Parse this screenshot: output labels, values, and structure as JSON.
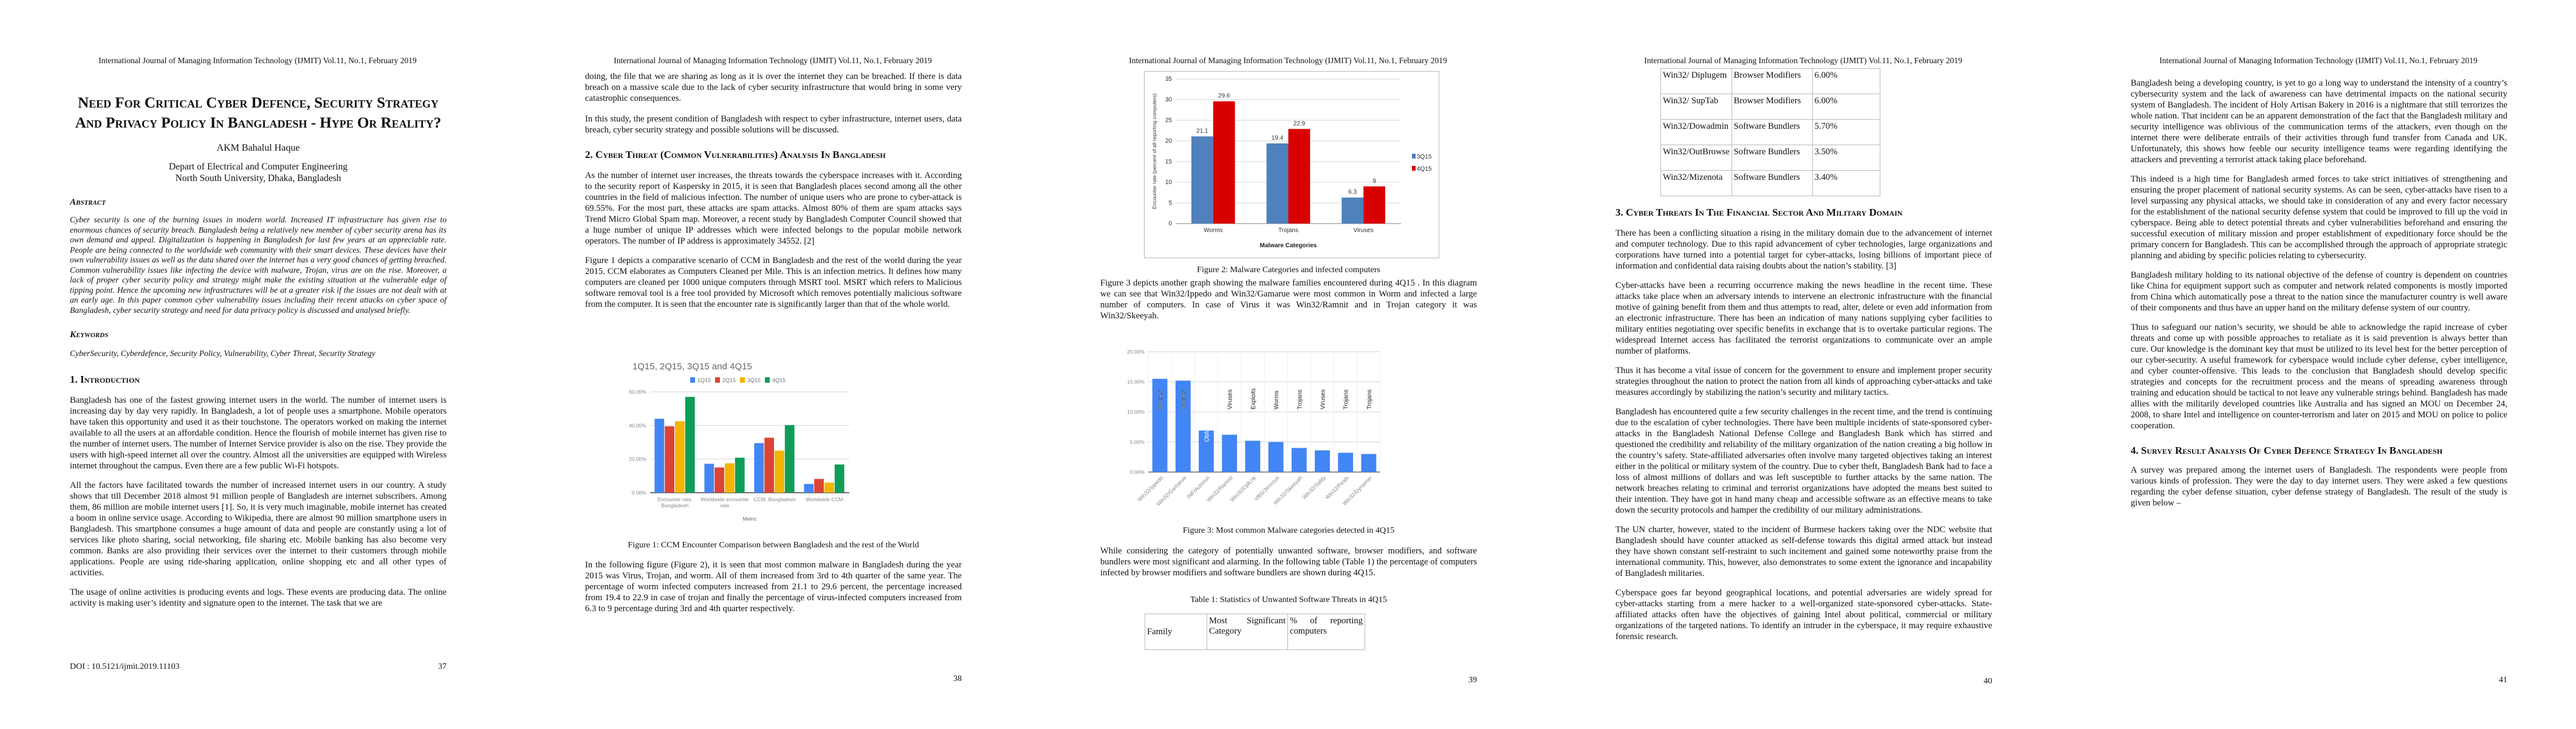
{
  "running_header": "International Journal of Managing Information Technology (IJMIT) Vol.11, No.1, February 2019",
  "page1": {
    "title": "Need For Critical Cyber Defence, Security Strategy And Privacy Policy In Bangladesh - Hype Or Reality?",
    "author": "AKM Bahalul Haque",
    "affiliation_1": "Depart of Electrical and Computer Engineering",
    "affiliation_2": "North South University, Dhaka, Bangladesh",
    "abstract_heading": "Abstract",
    "abstract": "Cyber security is one of the burning issues in modern world. Increased IT infrastructure has given rise to enormous chances of security breach. Bangladesh being a relatively new member of cyber security arena has its own demand and appeal. Digitalization is happening in Bangladesh for last few years at an appreciable rate. People are being connected to the worldwide web community with their smart devices. These devices have their own vulnerability issues as well as the data shared over the internet has a very good chances of getting breached. Common vulnerability issues like infecting the device with malware, Trojan, virus are on the rise. Moreover, a lack of proper cyber security policy and strategy might make the existing situation at the vulnerable edge of tipping point. Hence the upcoming new infrastructures will be at a greater risk if the issues are not dealt with at an early age. In this paper common cyber vulnerability issues including their recent attacks on cyber space of Bangladesh, cyber security strategy and need for data privacy policy is discussed and analysed briefly.",
    "keywords_heading": "Keywords",
    "keywords": "CyberSecurity, Cyberdefence, Security Policy, Vulnerability, Cyber Threat, Security Strategy",
    "intro_heading": "1. Introduction",
    "paragraphs": [
      "Bangladesh has one of the fastest growing internet users in the world. The number of internet users is increasing day by day very rapidly. In Bangladesh, a lot of people uses a smartphone. Mobile operators have taken this opportunity and used it as their touchstone. The operators worked on making the internet available to all the users at an affordable condition. Hence the flourish of mobile internet has given rise to the number of internet users. The number of Internet Service provider is also on the rise. They provide the users with high-speed internet all over the country. Almost all the universities are equipped with Wireless internet throughout the campus. Even there are a few public Wi-Fi hotspots.",
      "All the factors have facilitated towards the number of increased internet users in our country. A study shows that till December 2018 almost 91 million people of Bangladesh are internet subscribers. Among them, 86 million are mobile internet users [1]. So, it is very much imaginable, mobile internet has created a boom in online service usage. According to Wikipedia, there are almost 90 million smartphone users in Bangladesh. This smartphone consumes a huge amount of data and people are constantly using a lot of services like photo sharing, social networking, file sharing etc. Mobile banking has also become very common. Banks are also providing their services over the internet to their customers through mobile applications. People are using ride-sharing application, online shopping etc and all other types of activities.",
      "The usage of online activities is producing events and logs. These events are producing data. The online activity is making user’s identity and signature open to the internet. The task that we are"
    ],
    "doi": "DOI : 10.5121/ijmit.2019.11103",
    "page_number": "37"
  },
  "page2": {
    "paragraphs_top": [
      "doing, the file that we are sharing as long as it is over the internet they can be breached. If there is data breach on a massive scale due to the lack of cyber security infrastructure that would bring in some very catastrophic consequences.",
      "In this study, the present condition of Bangladesh with respect to cyber infrastructure, internet users, data breach, cyber security strategy and possible solutions will be discussed."
    ],
    "section2_heading": "2. Cyber Threat (Common Vulnerabilities) Analysis In Bangladesh",
    "paragraphs_mid": [
      "As the number of internet user increases, the threats towards the cyberspace increases with it. According to the security report of Kaspersky in 2015, it is seen that Bangladesh places second among all the other countries in the field of malicious infection. The number of unique users who are prone to cyber-attack is 69.55%. For the most part, these attacks are spam attacks. Almost 80% of them are spam attacks says Trend Micro Global Spam map. Moreover, a recent study by Bangladesh Computer Council showed that a huge number of unique IP addresses which were infected belongs to the popular mobile network operators. The number of IP address is approximately 34552. [2]",
      "Figure 1 depicts a comparative scenario of CCM in Bangladesh and the rest of the world during the year 2015. CCM elaborates as Computers Cleaned per Mile. This is an infection metrics. It defines how many computers are cleaned per 1000 unique computers through MSRT tool. MSRT which refers to Malicious software removal tool is a free tool provided by Microsoft which removes potentially malicious software from the computer. It is seen that the encounter rate is significantly larger than that of the whole world."
    ],
    "figure1_caption": "Figure 1: CCM Encounter Comparison between Bangladesh and the rest of the World",
    "paragraph_bottom": "In the following figure (Figure 2), it is seen that most common malware in Bangladesh during the year 2015 was Virus, Trojan, and worm.  All of them increased from 3rd to 4th quarter of the same year. The percentage of worm infected computers increased from 21.1 to 29.6 percent, the percentage increased from 19.4 to 22.9 in case of trojan and finally the percentage of virus-infected computers increased from 6.3 to 9 percentage during 3rd and 4th quarter respectively.",
    "page_number": "38"
  },
  "page3": {
    "figure2_caption": "Figure 2: Malware Categories and infected computers",
    "paragraph_1": "Figure 3 depicts another graph showing the malware families encountered during 4Q15 . In this diagram we can see that Win32/Ippedo and  Win32/Gamarue were most common in Worm and infected a large number of computers. In case of Virus it was Win32/Ramnit and in Trojan category it was Win32/Skeeyah.",
    "figure3_caption": "Figure 3: Most common Malware categories detected in 4Q15",
    "paragraph_2": "While considering the category of potentially unwanted software, browser modifiers, and software bundlers were most significant and alarming. In the following table (Table 1) the percentage of computers infected by browser modifiers and software bundlers are shown during 4Q15.",
    "table_caption": "Table 1: Statistics of Unwanted Software Threats in 4Q15",
    "table_headers": [
      "Family",
      "Most Significant Category",
      "% of reporting computers"
    ],
    "page_number": "39"
  },
  "page4": {
    "table_rows": [
      [
        "Win32/ Diplugem",
        "Browser Modifiers",
        "6.00%"
      ],
      [
        "Win32/ SupTab",
        "Browser Modifiers",
        "6.00%"
      ],
      [
        "Win32/Dowadmin",
        "Software Bundlers",
        "5.70%"
      ],
      [
        "Win32/OutBrowse",
        "Software Bundlers",
        "3.50%"
      ],
      [
        "Win32/Mizenota",
        "Software Bundlers",
        "3.40%"
      ]
    ],
    "section3_heading": "3. Cyber Threats In The Financial Sector And Military Domain",
    "paragraphs": [
      "There has been a conflicting situation a rising in the military domain due to the advancement of internet and computer technology. Due to this rapid advancement of cyber technologies, large organizations and corporations have turned into a potential target for cyber-attacks, losing billions of important piece of information and confidential data raising doubts about the nation’s stability. [3]",
      "Cyber-attacks have been a recurring occurrence making the news headline in the recent time. These attacks take place when an adversary intends to intervene an electronic infrastructure with the financial motive of gaining benefit from them and thus attempts to read, alter, delete or even add information from an electronic infrastructure. There has been an indication of many nations supplying cyber facilities to military entities negotiating over specific benefits in exchange that is to overtake particular regions. The widespread Internet access has facilitated the terrorist organizations to communicate over an ample number of platforms.",
      "Thus it has become a vital issue of concern for the government to ensure and implement proper security strategies throughout the nation to protect the nation from all kinds of approaching cyber-attacks and take measures accordingly by stabilizing the nation’s security and military tactics.",
      "Bangladesh has encountered quite a few security challenges in the recent time, and the trend is continuing due to the escalation of cyber technologies. There have been multiple incidents of state-sponsored cyber-attacks in the Bangladesh National Defense College and Bangladesh Bank which has stirred and questioned the credibility and reliability of the military organization of the nation creating a big hollow in the country’s safety. State-affiliated adversaries often involve many targeted objectives taking an interest either in the political or military system of the country. Due to cyber theft, Bangladesh Bank had to face a loss of almost millions of dollars and was left susceptible to further attacks by the same nation.  The network breaches relating to criminal and terrorist organizations have adopted the means best suited to their intention. They have got in hand many cheap and accessible software as an effective means to take down the security protocols and hamper the credibility of our military administrations.",
      "The UN charter, however, stated to the incident of Burmese hackers taking over the NDC website that Bangladesh should have counter attacked as self-defense towards this digital armed attack but instead they have shown constant self-restraint to such incitement and gained some noteworthy praise from the international community. This, however, also demonstrates to some extent the ignorance and incapability of Bangladesh militaries.",
      "Cyberspace goes far beyond geographical locations, and potential adversaries are widely spread for cyber-attacks starting from a mere hacker to a well-organized state-sponsored cyber-attacks. State-affiliated attacks often have the objectives of gaining Intel about political, commercial or military organizations of the targeted nations. To identify an intruder in the cyberspace, it may require exhaustive forensic research."
    ],
    "page_number": "40"
  },
  "page5": {
    "paragraphs": [
      "Bangladesh being a developing country, is yet to go a long way to understand the intensity of a country’s cybersecurity system and the lack of awareness can have detrimental impacts on the national security system of Bangladesh. The incident of Holy Artisan Bakery in 2016 is a nightmare that still terrorizes the whole nation.  That incident can be an apparent demonstration of the fact that the Bangladesh military and security intelligence was oblivious of the communication terms of the attackers, even though on the internet there were deliberate entrails of their activities through fund transfer from Canada and UK. Unfortunately, this shows how feeble our security intelligence teams were regarding identifying the attackers and preventing a terrorist attack taking place beforehand.",
      "This indeed is a high time for Bangladesh armed forces to take strict initiatives of strengthening and ensuring the proper placement of national security systems. As can be seen, cyber-attacks have risen to a level surpassing any physical attacks, we should take in consideration of any and every factor necessary for the establishment of the national security defense system that could be improved to fill up the void in cyberspace. Being able to detect potential threats and cyber vulnerabilities beforehand and ensuring the successful execution of military mission and proper establishment of expeditionary force should be the primary concern for Bangladesh.  This can be accomplished through the approach of appropriate strategic planning and abiding by specific policies relating to cybersecurity.",
      "Bangladesh military holding to its national objective of the defense of country is dependent on countries like China for equipment support such as computer and network related components is mostly imported from China which automatically pose a threat to the nation since the manufacturer country is well aware of their components and thus have an upper hand on the military defense system of our country.",
      "Thus to safeguard our nation’s security, we should be able to acknowledge the rapid increase of cyber threats and come up with possible approaches to retaliate as it is said prevention is always better than cure. Our knowledge is the dominant key that must be utilized to its level best for the better perception of our cyber-security. A useful framework for cyberspace would include cyber defense, cyber intelligence, and cyber counter-offensive.  This leads to the conclusion that Bangladesh should develop specific strategies and concepts for the recruitment process and the means of spreading awareness through training and education should be tactical to not leave any vulnerable strings behind. Bangladesh has made allies with the militarily developed countries like Australia and has signed an MOU on December 24, 2008, to share Intel and intelligence on counter-terrorism and later on 2015 and MOU on police to police cooperation."
    ],
    "section4_heading": "4. Survey Result Analysis Of Cyber Defence Strategy In Bangladesh",
    "paragraph_last": "A survey was prepared among the internet users of Bangladesh. The respondents were people from various kinds of profession. They were the day to day internet users. They were asked a few questions regarding the cyber defense situation, cyber defense strategy of Bangladesh. The result of the study is given below –",
    "page_number": "41"
  },
  "chart_data": [
    {
      "id": "figure1",
      "type": "bar",
      "title": "1Q15, 2Q15, 3Q15 and 4Q15",
      "xlabel": "Metric",
      "ylabel": "",
      "categories": [
        "Encounter rate, Bangladesh",
        "Worldwide encounter rate",
        "CCM, Bangladesh",
        "Worldwide CCM"
      ],
      "series": [
        {
          "name": "1Q15",
          "color": "#4285f4",
          "values": [
            44.0,
            17.2,
            29.5,
            5.2
          ]
        },
        {
          "name": "2Q15",
          "color": "#db4437",
          "values": [
            39.5,
            15.0,
            32.7,
            8.2
          ]
        },
        {
          "name": "3Q15",
          "color": "#f4b400",
          "values": [
            42.5,
            17.5,
            25.0,
            6.0
          ]
        },
        {
          "name": "4Q15",
          "color": "#0f9d58",
          "values": [
            57.0,
            20.8,
            40.2,
            16.8
          ]
        }
      ],
      "yticks": [
        "0.00%",
        "20.00%",
        "40.00%",
        "60.00%"
      ],
      "ylim": [
        0,
        60
      ],
      "legend": "top",
      "grid": true
    },
    {
      "id": "figure2",
      "type": "bar",
      "title": "",
      "xlabel": "Malware Categories",
      "ylabel": "Encounter rate (percent of all reporting computers)",
      "categories": [
        "Worms",
        "Trojans",
        "Viruses"
      ],
      "series": [
        {
          "name": "3Q15",
          "color": "#4f81bd",
          "values": [
            21.1,
            19.4,
            6.3
          ]
        },
        {
          "name": "4Q15",
          "color": "#d90000",
          "values": [
            29.6,
            22.9,
            9
          ]
        }
      ],
      "data_labels": [
        [
          "21.1",
          "19.4",
          "6.3"
        ],
        [
          "29.6",
          "22.9",
          "9"
        ]
      ],
      "yticks": [
        "0",
        "5",
        "10",
        "15",
        "20",
        "25",
        "30",
        "35"
      ],
      "ylim": [
        0,
        35
      ],
      "legend": "right",
      "grid": true
    },
    {
      "id": "figure3",
      "type": "bar",
      "title": "",
      "xlabel": "",
      "ylabel": "",
      "categories": [
        "Win32/Ippedo",
        "Win32/Gamarue",
        "INF/Autorun",
        "Win32/Ramnit",
        "Win32/CplLnk",
        "VBS/Jenxcus",
        "Win32/Skeeyah",
        "Win32/Sality",
        "Win32/Peals",
        "Win32/Dynamer"
      ],
      "bar_labels": [
        "Worms",
        "Worms",
        "Obfuscators & Injectors",
        "Viruses",
        "Exploits",
        "Worms",
        "Trojans",
        "Viruses",
        "Trojans",
        "Trojans"
      ],
      "series": [
        {
          "name": "4Q15",
          "color": "#4285f4",
          "values": [
            15.5,
            15.2,
            6.9,
            6.2,
            5.2,
            5.0,
            4.0,
            3.6,
            3.2,
            3.0
          ]
        }
      ],
      "yticks": [
        "0.00%",
        "5.00%",
        "10.00%",
        "15.00%",
        "20.00%"
      ],
      "ylim": [
        0,
        20
      ],
      "legend": "none",
      "grid": true
    }
  ]
}
